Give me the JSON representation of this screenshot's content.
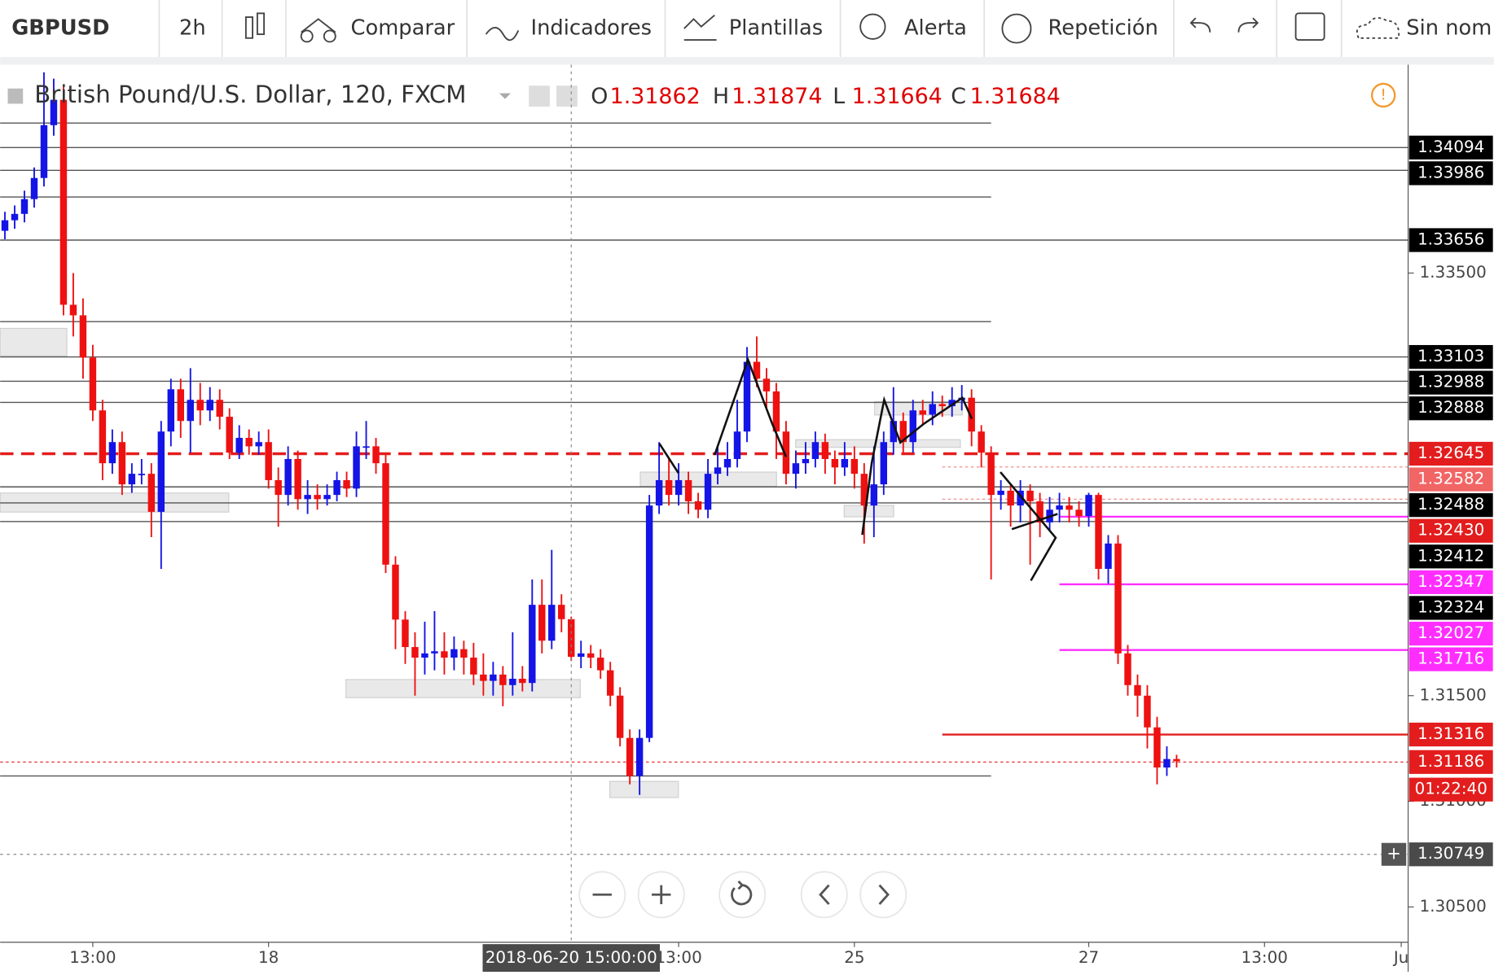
{
  "toolbar": {
    "symbol": "GBPUSD",
    "interval": "2h",
    "items": [
      "Comparar",
      "Indicadores",
      "Plantillas",
      "Alerta",
      "Repetición",
      "Sin nom"
    ]
  },
  "legend": {
    "title": "British Pound/U.S. Dollar, 120, FXCM",
    "letters": [
      "O",
      "H",
      "L",
      "C"
    ]
  },
  "chart_data": {
    "type": "candlestick",
    "up_color": "#1414e6",
    "down_color": "#ee1111",
    "open": [
      1.337,
      1.3375,
      1.3378,
      1.3385,
      1.3395,
      1.342,
      1.3432,
      1.3335,
      1.333,
      1.331,
      1.3285,
      1.326,
      1.327,
      1.325,
      1.3255,
      1.3255,
      1.3237,
      1.3275,
      1.3295,
      1.328,
      1.329,
      1.3285,
      1.329,
      1.3282,
      1.3265,
      1.3272,
      1.3268,
      1.327,
      1.3252,
      1.3245,
      1.3262,
      1.3243,
      1.3245,
      1.3243,
      1.3245,
      1.3252,
      1.3248,
      1.3268,
      1.3268,
      1.326,
      1.3212,
      1.3186,
      1.3173,
      1.3168,
      1.317,
      1.3171,
      1.3168,
      1.3172,
      1.3168,
      1.316,
      1.3157,
      1.316,
      1.3155,
      1.3158,
      1.3156,
      1.3193,
      1.3176,
      1.3193,
      1.31862,
      1.31684,
      1.317,
      1.3168,
      1.3162,
      1.315,
      1.313,
      1.3112,
      1.313,
      1.324,
      1.3252,
      1.3245,
      1.3252,
      1.3242,
      1.3238,
      1.3255,
      1.3258,
      1.3262,
      1.3275,
      1.3308,
      1.33,
      1.3294,
      1.3275,
      1.3255,
      1.326,
      1.3262,
      1.327,
      1.3262,
      1.3258,
      1.3262,
      1.3255,
      1.324,
      1.325,
      1.327,
      1.328,
      1.327,
      1.3285,
      1.3283,
      1.3288,
      1.3287,
      1.329,
      1.3291,
      1.3275,
      1.3265,
      1.3245,
      1.3247,
      1.324,
      1.3247,
      1.3242,
      1.3232,
      1.3238,
      1.324,
      1.3238,
      1.3235,
      1.3245,
      1.321,
      1.3222,
      1.317,
      1.3155,
      1.315,
      1.3135,
      1.3116,
      1.312
    ],
    "high": [
      1.3379,
      1.3382,
      1.3389,
      1.34,
      1.3445,
      1.3442,
      1.3438,
      1.335,
      1.3338,
      1.3316,
      1.329,
      1.3276,
      1.3275,
      1.326,
      1.3262,
      1.326,
      1.328,
      1.33,
      1.33,
      1.3305,
      1.3298,
      1.3296,
      1.3295,
      1.3286,
      1.3278,
      1.3276,
      1.3275,
      1.3276,
      1.3258,
      1.3268,
      1.3266,
      1.3252,
      1.325,
      1.325,
      1.3256,
      1.3256,
      1.3275,
      1.328,
      1.3272,
      1.3264,
      1.3216,
      1.319,
      1.318,
      1.3185,
      1.319,
      1.318,
      1.3178,
      1.3176,
      1.3175,
      1.317,
      1.3166,
      1.3164,
      1.318,
      1.3164,
      1.3205,
      1.3205,
      1.3219,
      1.3198,
      1.31874,
      1.3176,
      1.3174,
      1.3172,
      1.3166,
      1.3154,
      1.3134,
      1.3134,
      1.3245,
      1.327,
      1.3262,
      1.326,
      1.3256,
      1.3246,
      1.3262,
      1.3268,
      1.327,
      1.329,
      1.3315,
      1.332,
      1.3305,
      1.3298,
      1.328,
      1.3266,
      1.327,
      1.3275,
      1.3274,
      1.3266,
      1.327,
      1.3268,
      1.326,
      1.3268,
      1.3275,
      1.3296,
      1.3284,
      1.329,
      1.329,
      1.3294,
      1.3292,
      1.3296,
      1.3297,
      1.3295,
      1.3278,
      1.3268,
      1.3252,
      1.325,
      1.3252,
      1.325,
      1.3246,
      1.3244,
      1.3246,
      1.3244,
      1.3242,
      1.3246,
      1.3246,
      1.3226,
      1.3226,
      1.3174,
      1.316,
      1.3155,
      1.314,
      1.3126,
      1.3122
    ],
    "low": [
      1.3366,
      1.3371,
      1.3374,
      1.3381,
      1.3391,
      1.3415,
      1.333,
      1.332,
      1.33,
      1.328,
      1.3252,
      1.3255,
      1.3245,
      1.3246,
      1.325,
      1.3225,
      1.321,
      1.3268,
      1.3272,
      1.3265,
      1.3278,
      1.328,
      1.3276,
      1.3262,
      1.3262,
      1.3264,
      1.3264,
      1.3248,
      1.323,
      1.324,
      1.3238,
      1.3236,
      1.3238,
      1.324,
      1.3242,
      1.3244,
      1.3244,
      1.3262,
      1.3255,
      1.3208,
      1.3172,
      1.3165,
      1.315,
      1.316,
      1.3162,
      1.316,
      1.3162,
      1.316,
      1.3155,
      1.315,
      1.315,
      1.3145,
      1.315,
      1.3152,
      1.3152,
      1.317,
      1.3172,
      1.318,
      1.31664,
      1.3163,
      1.3163,
      1.3158,
      1.3145,
      1.3126,
      1.3108,
      1.3103,
      1.3128,
      1.3236,
      1.324,
      1.324,
      1.3236,
      1.3234,
      1.3234,
      1.325,
      1.3254,
      1.3258,
      1.327,
      1.3296,
      1.3286,
      1.3262,
      1.325,
      1.3248,
      1.3255,
      1.3258,
      1.3255,
      1.325,
      1.3254,
      1.3248,
      1.3222,
      1.3225,
      1.3245,
      1.3264,
      1.3265,
      1.3265,
      1.3278,
      1.3278,
      1.3282,
      1.3282,
      1.3285,
      1.3268,
      1.3258,
      1.3205,
      1.3238,
      1.323,
      1.3232,
      1.3212,
      1.3225,
      1.3228,
      1.3232,
      1.3232,
      1.323,
      1.323,
      1.3205,
      1.3203,
      1.3165,
      1.315,
      1.314,
      1.3125,
      1.3108,
      1.3112,
      1.3116
    ],
    "close": [
      1.3375,
      1.3378,
      1.3385,
      1.3395,
      1.342,
      1.3432,
      1.3335,
      1.333,
      1.331,
      1.3285,
      1.326,
      1.327,
      1.325,
      1.3255,
      1.3255,
      1.3237,
      1.3275,
      1.3295,
      1.328,
      1.329,
      1.3285,
      1.329,
      1.3282,
      1.3265,
      1.3272,
      1.3268,
      1.327,
      1.3252,
      1.3245,
      1.3262,
      1.3243,
      1.3245,
      1.3243,
      1.3245,
      1.3252,
      1.3248,
      1.3268,
      1.3268,
      1.326,
      1.3212,
      1.3186,
      1.3173,
      1.3168,
      1.317,
      1.3171,
      1.3168,
      1.3172,
      1.3168,
      1.316,
      1.3157,
      1.316,
      1.3155,
      1.3158,
      1.3156,
      1.3193,
      1.3176,
      1.3193,
      1.31862,
      1.31684,
      1.317,
      1.3168,
      1.3162,
      1.315,
      1.313,
      1.3112,
      1.313,
      1.324,
      1.3252,
      1.3245,
      1.3252,
      1.3242,
      1.3238,
      1.3255,
      1.3258,
      1.3262,
      1.3275,
      1.3308,
      1.33,
      1.3294,
      1.3275,
      1.3255,
      1.326,
      1.3262,
      1.327,
      1.3262,
      1.3258,
      1.3262,
      1.3255,
      1.324,
      1.325,
      1.327,
      1.328,
      1.327,
      1.3285,
      1.3283,
      1.3288,
      1.3287,
      1.329,
      1.3291,
      1.3275,
      1.3265,
      1.3245,
      1.3247,
      1.324,
      1.3247,
      1.3242,
      1.3232,
      1.3238,
      1.324,
      1.3238,
      1.3235,
      1.3245,
      1.321,
      1.3222,
      1.317,
      1.3155,
      1.315,
      1.3135,
      1.3116,
      1.312,
      1.3119
    ],
    "ylim": [
      1.30333,
      1.34486
    ],
    "yticks": [
      {
        "value": 1.335,
        "label": "1.33500"
      },
      {
        "value": 1.315,
        "label": "1.31500"
      },
      {
        "value": 1.31,
        "label": "1.31000"
      },
      {
        "value": 1.305,
        "label": "1.30500"
      }
    ],
    "xlim": [
      -0.49,
      143.71
    ],
    "xticks": [
      {
        "value": 9,
        "label": "13:00"
      },
      {
        "value": 27,
        "label": "18"
      },
      {
        "value": 69,
        "label": "13:00"
      },
      {
        "value": 87,
        "label": "25"
      },
      {
        "value": 111,
        "label": "27"
      },
      {
        "value": 129,
        "label": "13:00"
      },
      {
        "value": 143,
        "label": "Ju"
      }
    ],
    "levels": [
      {
        "price": 1.3421,
        "style": "thin",
        "color": "#555555",
        "to_index": 101
      },
      {
        "price": 1.34094,
        "style": "thin",
        "color": "#555555",
        "tag": "#000000"
      },
      {
        "price": 1.33986,
        "style": "thin",
        "color": "#555555",
        "tag": "#000000"
      },
      {
        "price": 1.3386,
        "style": "thin",
        "color": "#555555",
        "to_index": 101
      },
      {
        "price": 1.33656,
        "style": "thin",
        "color": "#555555",
        "tag": "#000000"
      },
      {
        "price": 1.3327,
        "style": "thin",
        "color": "#555555",
        "to_index": 101
      },
      {
        "price": 1.33103,
        "style": "thin",
        "color": "#555555",
        "tag": "#000000"
      },
      {
        "price": 1.32988,
        "style": "thin",
        "color": "#555555",
        "tag": "#000000"
      },
      {
        "price": 1.32888,
        "style": "thin",
        "color": "#555555",
        "tag": "#000000"
      },
      {
        "price": 1.32645,
        "style": "dashed",
        "color": "#e31d1d",
        "tag": "#e31d1d"
      },
      {
        "price": 1.32582,
        "style": "dotted",
        "color": "#f08080",
        "tag": "#f26565",
        "from_index": 96
      },
      {
        "price": 1.32488,
        "style": "thin",
        "color": "#555555",
        "tag": "#000000"
      },
      {
        "price": 1.3243,
        "label": "1.32430",
        "style": "dotted",
        "color": "#f08080",
        "tag": "#e31d1d",
        "from_index": 96
      },
      {
        "price": 1.32412,
        "style": "thin",
        "color": "#555555",
        "tag": "#000000"
      },
      {
        "price": 1.32347,
        "style": "solid",
        "color": "#ff2eff",
        "tag": "#ff2eff",
        "from_index": 108
      },
      {
        "price": 1.32324,
        "style": "thin",
        "color": "#555555",
        "tag": "#000000"
      },
      {
        "price": 1.32027,
        "style": "solid",
        "color": "#ff2eff",
        "tag": "#ff2eff",
        "from_index": 108
      },
      {
        "price": 1.31716,
        "style": "solid",
        "color": "#ff2eff",
        "tag": "#ff2eff",
        "from_index": 108
      },
      {
        "price": 1.31316,
        "style": "solid",
        "color": "#e31d1d",
        "tag": "#e31d1d",
        "from_index": 96
      },
      {
        "price": 1.3112,
        "style": "thin",
        "color": "#555555",
        "to_index": 101
      },
      {
        "price": 1.31186,
        "style": "dotted",
        "color": "#e31d1d",
        "tag": "#e31d1d"
      }
    ],
    "countdown": "01:22:40",
    "crosshair": {
      "index": 58,
      "time": "2018-06-20 15:00:00",
      "price": 1.30749
    }
  }
}
